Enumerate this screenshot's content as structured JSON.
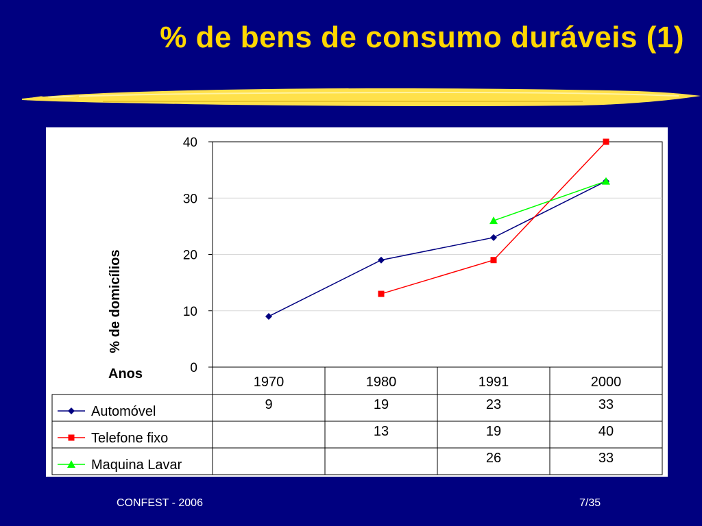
{
  "slide": {
    "title": "% de bens de consumo duráveis (1)",
    "footer_left": "CONFEST - 2006",
    "footer_right": "7/35"
  },
  "colors": {
    "background": "#000080",
    "title": "#FFD700",
    "brush": "#FFE14A"
  },
  "chart_data": {
    "type": "line",
    "title": "",
    "ylabel": "% de domicílios",
    "xlabel": "Anos",
    "ylim": [
      0,
      40
    ],
    "yticks": [
      0,
      10,
      20,
      30,
      40
    ],
    "grid": "horizontal",
    "categories": [
      "1970",
      "1980",
      "1991",
      "2000"
    ],
    "series": [
      {
        "name": "Automóvel",
        "values": [
          9,
          19,
          23,
          33
        ],
        "color": "#000080",
        "marker": "diamond"
      },
      {
        "name": "Telefone fixo",
        "values": [
          null,
          13,
          19,
          40
        ],
        "color": "#FF0000",
        "marker": "square"
      },
      {
        "name": "Maquina Lavar",
        "values": [
          null,
          null,
          26,
          33
        ],
        "color": "#00FF00",
        "marker": "triangle"
      }
    ],
    "legend": "data-table"
  }
}
